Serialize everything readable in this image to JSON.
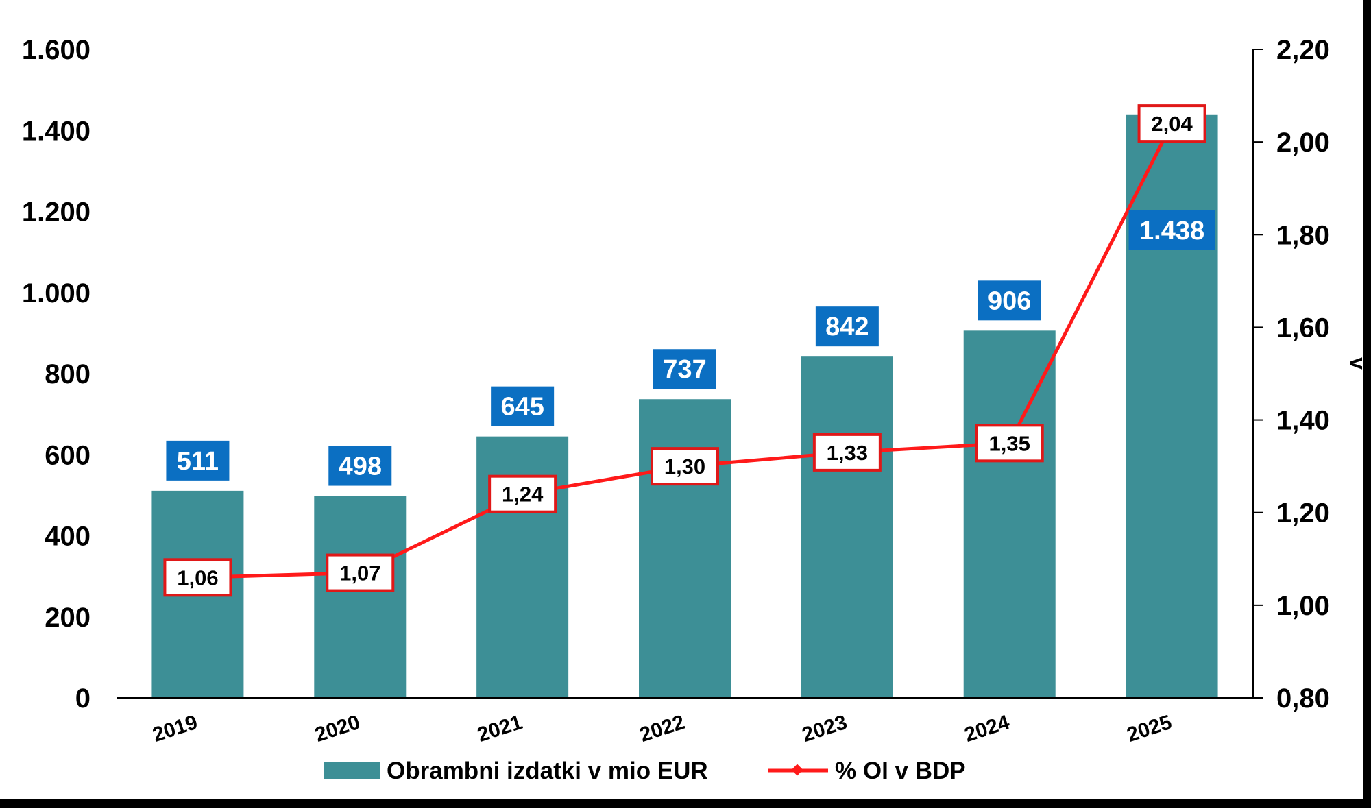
{
  "chart_data": {
    "type": "bar",
    "categories": [
      "2019",
      "2020",
      "2021",
      "2022",
      "2023",
      "2024",
      "2025"
    ],
    "series": [
      {
        "name": "Obrambni izdatki v mio EUR",
        "type": "bar",
        "axis": "left",
        "values": [
          511,
          498,
          645,
          737,
          842,
          906,
          1438
        ],
        "labels": [
          "511",
          "498",
          "645",
          "737",
          "842",
          "906",
          "1.438"
        ]
      },
      {
        "name": "% OI v BDP",
        "type": "line",
        "axis": "right",
        "values": [
          1.06,
          1.07,
          1.24,
          1.3,
          1.33,
          1.35,
          2.04
        ],
        "labels": [
          "1,06",
          "1,07",
          "1,24",
          "1,30",
          "1,33",
          "1,35",
          "2,04"
        ]
      }
    ],
    "y_left": {
      "range": [
        0,
        1600
      ],
      "ticks": [
        0,
        200,
        400,
        600,
        800,
        1000,
        1200,
        1400,
        1600
      ],
      "tick_labels": [
        "0",
        "200",
        "400",
        "600",
        "800",
        "1.000",
        "1.200",
        "1.400",
        "1.600"
      ]
    },
    "y_right": {
      "range": [
        0.8,
        2.2
      ],
      "ticks": [
        0.8,
        1.0,
        1.2,
        1.4,
        1.6,
        1.8,
        2.0,
        2.2
      ],
      "tick_labels": [
        "0,80",
        "1,00",
        "1,20",
        "1,40",
        "1,60",
        "1,80",
        "2,00",
        "2,20"
      ],
      "label": "v"
    },
    "legend_position": "bottom",
    "grid": false,
    "colors": {
      "bar": "#3D8F96",
      "line": "#FF1A1A",
      "bar_label_bg": "#0B6FC2",
      "bar_label_text": "#FFFFFF",
      "line_label_border": "#E01818",
      "line_label_bg": "#FFFFFF",
      "axis": "#000000"
    }
  }
}
